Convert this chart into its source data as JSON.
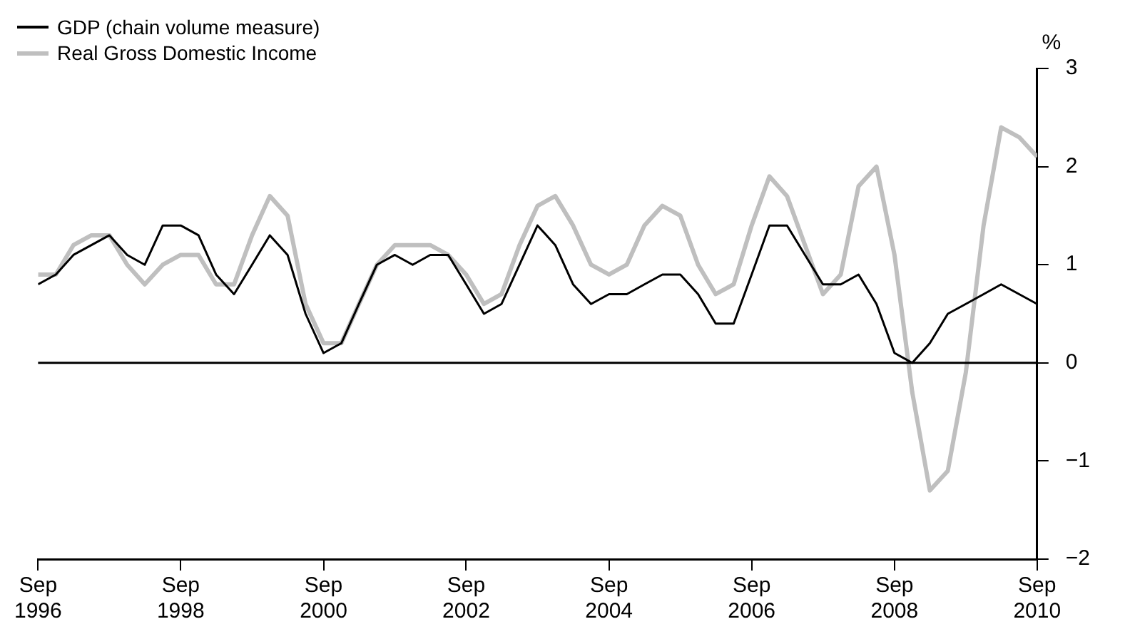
{
  "chart_data": {
    "type": "line",
    "ylabel": "%",
    "x": [
      "1996-09",
      "1996-12",
      "1997-03",
      "1997-06",
      "1997-09",
      "1997-12",
      "1998-03",
      "1998-06",
      "1998-09",
      "1998-12",
      "1999-03",
      "1999-06",
      "1999-09",
      "1999-12",
      "2000-03",
      "2000-06",
      "2000-09",
      "2000-12",
      "2001-03",
      "2001-06",
      "2001-09",
      "2001-12",
      "2002-03",
      "2002-06",
      "2002-09",
      "2002-12",
      "2003-03",
      "2003-06",
      "2003-09",
      "2003-12",
      "2004-03",
      "2004-06",
      "2004-09",
      "2004-12",
      "2005-03",
      "2005-06",
      "2005-09",
      "2005-12",
      "2006-03",
      "2006-06",
      "2006-09",
      "2006-12",
      "2007-03",
      "2007-06",
      "2007-09",
      "2007-12",
      "2008-03",
      "2008-06",
      "2008-09",
      "2008-12",
      "2009-03",
      "2009-06",
      "2009-09",
      "2009-12",
      "2010-03",
      "2010-06",
      "2010-09"
    ],
    "series": [
      {
        "name": "GDP (chain volume measure)",
        "color": "#000000",
        "values": [
          0.8,
          0.9,
          1.1,
          1.2,
          1.3,
          1.1,
          1.0,
          1.4,
          1.4,
          1.3,
          0.9,
          0.7,
          1.0,
          1.3,
          1.1,
          0.5,
          0.1,
          0.2,
          0.6,
          1.0,
          1.1,
          1.0,
          1.1,
          1.1,
          0.8,
          0.5,
          0.6,
          1.0,
          1.4,
          1.2,
          0.8,
          0.6,
          0.7,
          0.7,
          0.8,
          0.9,
          0.9,
          0.7,
          0.4,
          0.4,
          0.9,
          1.4,
          1.4,
          1.1,
          0.8,
          0.8,
          0.9,
          0.6,
          0.1,
          0.0,
          0.2,
          0.5,
          0.6,
          0.7,
          0.8,
          0.7,
          0.6
        ]
      },
      {
        "name": "Real Gross Domestic Income",
        "color": "#bfbfbf",
        "values": [
          0.9,
          0.9,
          1.2,
          1.3,
          1.3,
          1.0,
          0.8,
          1.0,
          1.1,
          1.1,
          0.8,
          0.8,
          1.3,
          1.7,
          1.5,
          0.6,
          0.2,
          0.2,
          0.6,
          1.0,
          1.2,
          1.2,
          1.2,
          1.1,
          0.9,
          0.6,
          0.7,
          1.2,
          1.6,
          1.7,
          1.4,
          1.0,
          0.9,
          1.0,
          1.4,
          1.6,
          1.5,
          1.0,
          0.7,
          0.8,
          1.4,
          1.9,
          1.7,
          1.2,
          0.7,
          0.9,
          1.8,
          2.0,
          1.1,
          -0.3,
          -1.3,
          -1.1,
          -0.1,
          1.4,
          2.4,
          2.3,
          2.1
        ]
      }
    ],
    "xlim": [
      "1996-09",
      "2010-09"
    ],
    "xticks": [
      {
        "value": "1996-09",
        "label": "Sep 1996"
      },
      {
        "value": "1998-09",
        "label": "Sep 1998"
      },
      {
        "value": "2000-09",
        "label": "Sep 2000"
      },
      {
        "value": "2002-09",
        "label": "Sep 2002"
      },
      {
        "value": "2004-09",
        "label": "Sep 2004"
      },
      {
        "value": "2006-09",
        "label": "Sep 2006"
      },
      {
        "value": "2008-09",
        "label": "Sep 2008"
      },
      {
        "value": "2010-09",
        "label": "Sep 2010"
      }
    ],
    "ylim": [
      -2,
      3
    ],
    "yticks": [
      -2,
      -1,
      0,
      1,
      2,
      3
    ],
    "ref_lines": [
      {
        "axis": "y",
        "value": 0,
        "color": "#000000"
      }
    ],
    "grid": false,
    "legend": "top left",
    "marker": "none",
    "line_style": "solid"
  }
}
